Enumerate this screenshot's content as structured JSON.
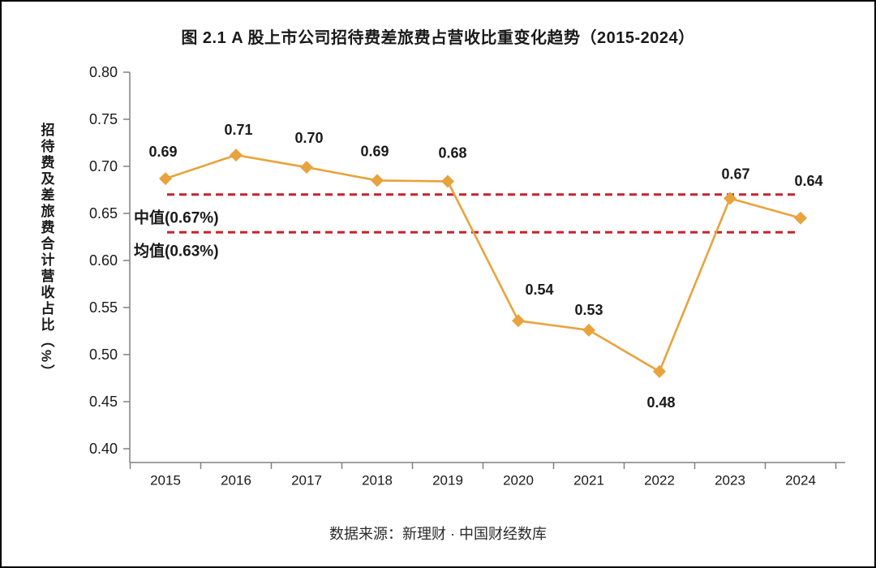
{
  "page": {
    "title": "图 2.1 A 股上市公司招待费差旅费占营收比重变化趋势（2015-2024）",
    "source": "数据来源：新理财 · 中国财经数库"
  },
  "chart_data": {
    "type": "line",
    "title": "图 2.1 A 股上市公司招待费差旅费占营收比重变化趋势（2015-2024）",
    "ylabel": "招待费及差旅费合计营收占比（%）",
    "xlabel": "",
    "categories": [
      "2015",
      "2016",
      "2017",
      "2018",
      "2019",
      "2020",
      "2021",
      "2022",
      "2023",
      "2024"
    ],
    "series": [
      {
        "name": "招待费及差旅费合计营收占比",
        "values": [
          0.69,
          0.71,
          0.7,
          0.69,
          0.68,
          0.54,
          0.53,
          0.48,
          0.67,
          0.64
        ],
        "point_labels": [
          "0.69",
          "0.71",
          "0.70",
          "0.69",
          "0.68",
          "0.54",
          "0.53",
          "0.48",
          "0.67",
          "0.64"
        ],
        "plotted_values": [
          0.687,
          0.712,
          0.699,
          0.685,
          0.684,
          0.536,
          0.526,
          0.482,
          0.666,
          0.645
        ],
        "color": "#E8A33D",
        "marker": "diamond"
      }
    ],
    "ylim": [
      0.4,
      0.8
    ],
    "yticks": [
      "0.80",
      "0.75",
      "0.70",
      "0.65",
      "0.60",
      "0.55",
      "0.50",
      "0.45",
      "0.40"
    ],
    "grid": false,
    "legend": "none",
    "reference_lines": [
      {
        "label": "中值(0.67%)",
        "value": 0.67,
        "style": "dashed",
        "color": "#C5242C"
      },
      {
        "label": "均值(0.63%)",
        "value": 0.63,
        "style": "dashed",
        "color": "#C5242C"
      }
    ],
    "source": "数据来源：新理财 · 中国财经数库"
  },
  "colors": {
    "line": "#E8A33D",
    "reference": "#C5242C",
    "axis": "#808080",
    "text": "#1A1A1A"
  }
}
